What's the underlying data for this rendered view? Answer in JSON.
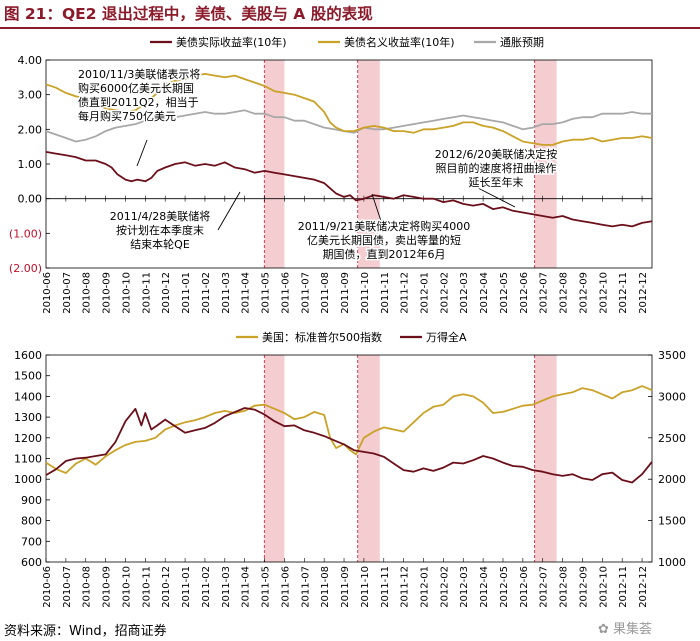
{
  "header": {
    "title": "图 21：QE2 退出过程中，美债、美股与 A 股的表现",
    "source": "资料来源：Wind，招商证券",
    "watermark": "✿ 果集荟"
  },
  "colors": {
    "real_yield": "#6b0f1a",
    "nominal_yield": "#c9a227",
    "inflation": "#a8a8a8",
    "spx": "#c9a227",
    "wind_a": "#6b0f1a",
    "band": "#f2c4c8",
    "vline": "#c0102a",
    "title": "#8b1a2b"
  },
  "chart_data": [
    {
      "id": "top",
      "type": "line",
      "title": "",
      "x_ticks": [
        "2010-06",
        "2010-07",
        "2010-08",
        "2010-09",
        "2010-10",
        "2010-11",
        "2010-12",
        "2011-01",
        "2011-02",
        "2011-03",
        "2011-04",
        "2011-05",
        "2011-06",
        "2011-07",
        "2011-08",
        "2011-09",
        "2011-10",
        "2011-11",
        "2011-12",
        "2012-01",
        "2012-02",
        "2012-03",
        "2012-04",
        "2012-05",
        "2012-06",
        "2012-07",
        "2012-08",
        "2012-09",
        "2012-10",
        "2012-11",
        "2012-12"
      ],
      "ylim": [
        -2.0,
        4.0
      ],
      "y_ticks": [
        -2,
        -1,
        0,
        1,
        2,
        3,
        4
      ],
      "y_tick_labels": [
        "(2.00)",
        "(1.00)",
        "0.00",
        "1.00",
        "2.00",
        "3.00",
        "4.00"
      ],
      "negative_labels_color": "#c0102a",
      "legend": [
        "美债实际收益率(10年)",
        "美债名义收益率(10年)",
        "通胀预期"
      ],
      "series": [
        {
          "name": "美债实际收益率(10年)",
          "key": "real_yield",
          "x": [
            0.0,
            0.5,
            1.0,
            1.5,
            2.0,
            2.5,
            3.0,
            3.3,
            3.6,
            4.0,
            4.3,
            4.6,
            5.0,
            5.3,
            5.6,
            6.0,
            6.5,
            7.0,
            7.5,
            8.0,
            8.5,
            9.0,
            9.5,
            10.0,
            10.5,
            11.0,
            11.5,
            12.0,
            12.5,
            13.0,
            13.5,
            14.0,
            14.3,
            14.6,
            15.0,
            15.3,
            15.6,
            16.0,
            16.5,
            17.0,
            17.5,
            18.0,
            18.5,
            19.0,
            19.5,
            20.0,
            20.5,
            21.0,
            21.5,
            22.0,
            22.5,
            23.0,
            23.5,
            24.0,
            24.5,
            25.0,
            25.5,
            26.0,
            26.5,
            27.0,
            27.5,
            28.0,
            28.5,
            29.0,
            29.5,
            30.0,
            30.5
          ],
          "values": [
            1.35,
            1.3,
            1.25,
            1.2,
            1.1,
            1.1,
            1.0,
            0.9,
            0.7,
            0.55,
            0.5,
            0.55,
            0.5,
            0.6,
            0.8,
            0.9,
            1.0,
            1.05,
            0.95,
            1.0,
            0.95,
            1.05,
            0.9,
            0.85,
            0.75,
            0.8,
            0.75,
            0.7,
            0.65,
            0.6,
            0.55,
            0.45,
            0.3,
            0.15,
            0.05,
            0.1,
            -0.05,
            0.0,
            0.1,
            0.05,
            0.0,
            0.1,
            0.05,
            0.0,
            0.0,
            -0.1,
            -0.05,
            -0.15,
            -0.2,
            -0.15,
            -0.3,
            -0.25,
            -0.35,
            -0.4,
            -0.45,
            -0.5,
            -0.55,
            -0.5,
            -0.6,
            -0.65,
            -0.7,
            -0.75,
            -0.8,
            -0.75,
            -0.8,
            -0.7,
            -0.65
          ]
        },
        {
          "name": "美债名义收益率(10年)",
          "key": "nominal_yield",
          "x": [
            0.0,
            0.5,
            1.0,
            1.5,
            2.0,
            2.5,
            3.0,
            3.5,
            4.0,
            4.5,
            5.0,
            5.5,
            6.0,
            6.5,
            7.0,
            7.5,
            8.0,
            8.5,
            9.0,
            9.5,
            10.0,
            10.5,
            11.0,
            11.5,
            12.0,
            12.5,
            13.0,
            13.5,
            14.0,
            14.3,
            14.6,
            15.0,
            15.5,
            16.0,
            16.5,
            17.0,
            17.5,
            18.0,
            18.5,
            19.0,
            19.5,
            20.0,
            20.5,
            21.0,
            21.5,
            22.0,
            22.5,
            23.0,
            23.5,
            24.0,
            24.5,
            25.0,
            25.5,
            26.0,
            26.5,
            27.0,
            27.5,
            28.0,
            28.5,
            29.0,
            29.5,
            30.0,
            30.5
          ],
          "values": [
            3.3,
            3.2,
            3.05,
            2.95,
            2.9,
            2.75,
            2.6,
            2.55,
            2.5,
            2.55,
            2.75,
            3.0,
            3.3,
            3.4,
            3.45,
            3.55,
            3.6,
            3.55,
            3.5,
            3.55,
            3.45,
            3.35,
            3.25,
            3.1,
            3.05,
            3.0,
            2.9,
            2.8,
            2.5,
            2.2,
            2.05,
            1.95,
            1.95,
            2.05,
            2.1,
            2.05,
            1.95,
            1.95,
            1.9,
            2.0,
            2.0,
            2.05,
            2.1,
            2.2,
            2.2,
            2.1,
            2.05,
            1.95,
            1.8,
            1.65,
            1.6,
            1.55,
            1.55,
            1.65,
            1.7,
            1.7,
            1.75,
            1.65,
            1.7,
            1.75,
            1.75,
            1.8,
            1.75
          ]
        },
        {
          "name": "通胀预期",
          "key": "inflation",
          "x": [
            0.0,
            0.5,
            1.0,
            1.5,
            2.0,
            2.5,
            3.0,
            3.5,
            4.0,
            4.5,
            5.0,
            5.5,
            6.0,
            6.5,
            7.0,
            7.5,
            8.0,
            8.5,
            9.0,
            9.5,
            10.0,
            10.5,
            11.0,
            11.5,
            12.0,
            12.5,
            13.0,
            13.5,
            14.0,
            14.5,
            15.0,
            15.5,
            16.0,
            16.5,
            17.0,
            17.5,
            18.0,
            18.5,
            19.0,
            19.5,
            20.0,
            20.5,
            21.0,
            21.5,
            22.0,
            22.5,
            23.0,
            23.5,
            24.0,
            24.5,
            25.0,
            25.5,
            26.0,
            26.5,
            27.0,
            27.5,
            28.0,
            28.5,
            29.0,
            29.5,
            30.0,
            30.5
          ],
          "values": [
            1.95,
            1.85,
            1.75,
            1.65,
            1.7,
            1.8,
            1.95,
            2.05,
            2.1,
            2.15,
            2.25,
            2.35,
            2.4,
            2.35,
            2.4,
            2.45,
            2.5,
            2.45,
            2.45,
            2.5,
            2.55,
            2.45,
            2.45,
            2.35,
            2.35,
            2.25,
            2.25,
            2.15,
            2.05,
            2.0,
            1.95,
            1.9,
            2.05,
            2.0,
            2.0,
            2.05,
            2.1,
            2.15,
            2.2,
            2.25,
            2.3,
            2.35,
            2.4,
            2.35,
            2.3,
            2.25,
            2.2,
            2.1,
            2.0,
            2.05,
            2.15,
            2.15,
            2.2,
            2.3,
            2.35,
            2.35,
            2.45,
            2.45,
            2.45,
            2.5,
            2.45,
            2.45
          ]
        }
      ],
      "annotations": [
        {
          "text": "2010/11/3美联储表示将|购买6000亿美元长期国|债直到2011Q2，相当于|每月购买750亿美元"
        },
        {
          "text": "2011/4/28美联储将|按计划在本季度末|结束本轮QE"
        },
        {
          "text": "2011/9/21美联储决定将购买4000|亿美元长期国债，卖出等量的短|期国债，直到2012年6月"
        },
        {
          "text": "2012/6/20美联储决定按|照目前的速度将扭曲操作|延长至年末"
        }
      ]
    },
    {
      "id": "bottom",
      "type": "line",
      "title": "",
      "x_ticks": [
        "2010-06",
        "2010-07",
        "2010-08",
        "2010-09",
        "2010-10",
        "2010-11",
        "2010-12",
        "2011-01",
        "2011-02",
        "2011-03",
        "2011-04",
        "2011-05",
        "2011-06",
        "2011-07",
        "2011-08",
        "2011-09",
        "2011-10",
        "2011-11",
        "2011-12",
        "2012-01",
        "2012-02",
        "2012-03",
        "2012-04",
        "2012-05",
        "2012-06",
        "2012-07",
        "2012-08",
        "2012-09",
        "2012-10",
        "2012-11",
        "2012-12"
      ],
      "ylim_left": [
        600,
        1600
      ],
      "y_ticks_left": [
        600,
        700,
        800,
        900,
        1000,
        1100,
        1200,
        1300,
        1400,
        1500,
        1600
      ],
      "ylim_right": [
        1000,
        3500
      ],
      "y_ticks_right": [
        1000,
        1500,
        2000,
        2500,
        3000,
        3500
      ],
      "legend": [
        "美国：标准普尔500指数",
        "万得全A"
      ],
      "series": [
        {
          "name": "美国：标准普尔500指数",
          "key": "spx",
          "axis": "left",
          "x": [
            0.0,
            0.5,
            1.0,
            1.5,
            2.0,
            2.5,
            3.0,
            3.5,
            4.0,
            4.5,
            5.0,
            5.5,
            6.0,
            6.5,
            7.0,
            7.5,
            8.0,
            8.5,
            9.0,
            9.5,
            10.0,
            10.5,
            11.0,
            11.5,
            12.0,
            12.5,
            13.0,
            13.5,
            14.0,
            14.3,
            14.6,
            15.0,
            15.3,
            15.6,
            16.0,
            16.5,
            17.0,
            17.5,
            18.0,
            18.5,
            19.0,
            19.5,
            20.0,
            20.5,
            21.0,
            21.5,
            22.0,
            22.5,
            23.0,
            23.5,
            24.0,
            24.5,
            25.0,
            25.5,
            26.0,
            26.5,
            27.0,
            27.5,
            28.0,
            28.5,
            29.0,
            29.5,
            30.0,
            30.5
          ],
          "values": [
            1080,
            1050,
            1030,
            1075,
            1100,
            1070,
            1110,
            1140,
            1165,
            1180,
            1185,
            1200,
            1240,
            1260,
            1275,
            1285,
            1300,
            1320,
            1330,
            1320,
            1330,
            1355,
            1360,
            1340,
            1320,
            1290,
            1300,
            1325,
            1310,
            1200,
            1150,
            1170,
            1140,
            1120,
            1200,
            1230,
            1250,
            1240,
            1230,
            1275,
            1320,
            1350,
            1360,
            1400,
            1410,
            1400,
            1370,
            1320,
            1325,
            1340,
            1355,
            1360,
            1380,
            1400,
            1410,
            1420,
            1440,
            1430,
            1410,
            1390,
            1420,
            1430,
            1450,
            1430
          ]
        },
        {
          "name": "万得全A",
          "key": "wind_a",
          "axis": "right",
          "x": [
            0.0,
            0.5,
            1.0,
            1.5,
            2.0,
            2.5,
            3.0,
            3.5,
            4.0,
            4.5,
            4.8,
            5.0,
            5.3,
            5.6,
            6.0,
            6.5,
            7.0,
            7.5,
            8.0,
            8.5,
            9.0,
            9.5,
            10.0,
            10.5,
            11.0,
            11.5,
            12.0,
            12.5,
            13.0,
            13.5,
            14.0,
            14.5,
            15.0,
            15.5,
            16.0,
            16.5,
            17.0,
            17.5,
            18.0,
            18.5,
            19.0,
            19.5,
            20.0,
            20.5,
            21.0,
            21.5,
            22.0,
            22.5,
            23.0,
            23.5,
            24.0,
            24.5,
            25.0,
            25.5,
            26.0,
            26.5,
            27.0,
            27.5,
            28.0,
            28.5,
            29.0,
            29.5,
            30.0,
            30.5
          ],
          "values": [
            2050,
            2120,
            2220,
            2250,
            2260,
            2280,
            2300,
            2450,
            2700,
            2850,
            2650,
            2800,
            2600,
            2650,
            2720,
            2640,
            2560,
            2590,
            2620,
            2680,
            2760,
            2810,
            2860,
            2840,
            2780,
            2700,
            2640,
            2650,
            2590,
            2560,
            2520,
            2470,
            2420,
            2350,
            2330,
            2310,
            2270,
            2190,
            2110,
            2090,
            2130,
            2100,
            2140,
            2200,
            2190,
            2230,
            2280,
            2250,
            2200,
            2160,
            2150,
            2110,
            2090,
            2060,
            2040,
            2060,
            2010,
            1990,
            2060,
            2080,
            1990,
            1960,
            2060,
            2210
          ]
        }
      ]
    }
  ],
  "events": [
    {
      "id": "qe2-end-notice",
      "pos": 11.0,
      "kind": "line"
    },
    {
      "id": "qe2-end-band",
      "start": 11.0,
      "end": 12.0,
      "kind": "band"
    },
    {
      "id": "twist-line",
      "pos": 15.7,
      "kind": "line"
    },
    {
      "id": "twist-band",
      "start": 15.7,
      "end": 16.8,
      "kind": "band"
    },
    {
      "id": "twist-extend-line",
      "pos": 24.6,
      "kind": "line"
    },
    {
      "id": "twist-extend-band",
      "start": 24.6,
      "end": 25.7,
      "kind": "band"
    }
  ]
}
